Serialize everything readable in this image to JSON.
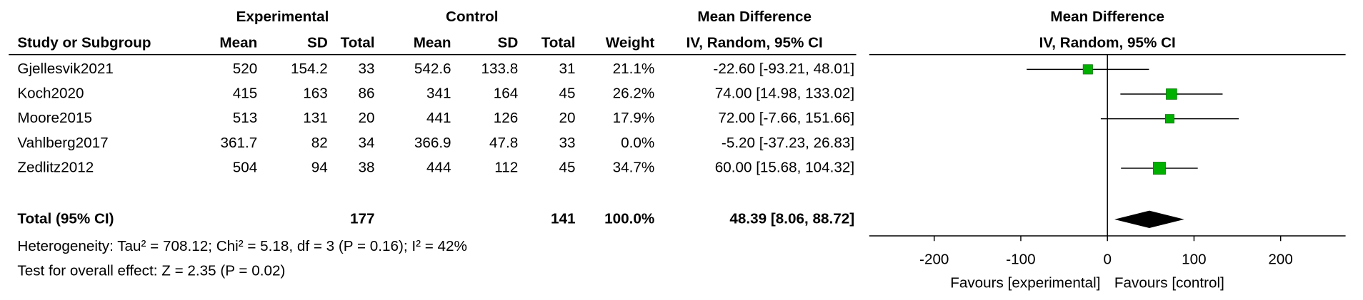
{
  "chart_data": {
    "type": "forest",
    "group_headers": [
      "Experimental",
      "Control",
      "Mean Difference"
    ],
    "column_headers": [
      "Study or Subgroup",
      "Mean",
      "SD",
      "Total",
      "Mean",
      "SD",
      "Total",
      "Weight",
      "IV, Random, 95% CI"
    ],
    "plot_headers": [
      "Mean Difference",
      "IV, Random, 95% CI"
    ],
    "studies": [
      {
        "name": "Gjellesvik2021",
        "exp_mean": 520,
        "exp_sd": 154.2,
        "exp_total": 33,
        "ctrl_mean": 542.6,
        "ctrl_sd": 133.8,
        "ctrl_total": 31,
        "weight": 21.1,
        "weight_label": "21.1%",
        "md": -22.6,
        "ci_low": -93.21,
        "ci_high": 48.01,
        "effect_label": "-22.60 [-93.21, 48.01]"
      },
      {
        "name": "Koch2020",
        "exp_mean": 415,
        "exp_sd": 163,
        "exp_total": 86,
        "ctrl_mean": 341,
        "ctrl_sd": 164,
        "ctrl_total": 45,
        "weight": 26.2,
        "weight_label": "26.2%",
        "md": 74,
        "ci_low": 14.98,
        "ci_high": 133.02,
        "effect_label": "74.00 [14.98, 133.02]"
      },
      {
        "name": "Moore2015",
        "exp_mean": 513,
        "exp_sd": 131,
        "exp_total": 20,
        "ctrl_mean": 441,
        "ctrl_sd": 126,
        "ctrl_total": 20,
        "weight": 17.9,
        "weight_label": "17.9%",
        "md": 72,
        "ci_low": -7.66,
        "ci_high": 151.66,
        "effect_label": "72.00 [-7.66, 151.66]"
      },
      {
        "name": "Vahlberg2017",
        "exp_mean": 361.7,
        "exp_sd": 82,
        "exp_total": 34,
        "ctrl_mean": 366.9,
        "ctrl_sd": 47.8,
        "ctrl_total": 33,
        "weight": 0,
        "weight_label": "0.0%",
        "md": -5.2,
        "ci_low": -37.23,
        "ci_high": 26.83,
        "effect_label": "-5.20 [-37.23, 26.83]"
      },
      {
        "name": "Zedlitz2012",
        "exp_mean": 504,
        "exp_sd": 94,
        "exp_total": 38,
        "ctrl_mean": 444,
        "ctrl_sd": 112,
        "ctrl_total": 45,
        "weight": 34.7,
        "weight_label": "34.7%",
        "md": 60,
        "ci_low": 15.68,
        "ci_high": 104.32,
        "effect_label": "60.00 [15.68, 104.32]"
      }
    ],
    "total": {
      "name": "Total (95% CI)",
      "exp_total": 177,
      "ctrl_total": 141,
      "weight": 100,
      "weight_label": "100.0%",
      "md": 48.39,
      "ci_low": 8.06,
      "ci_high": 88.72,
      "effect_label": "48.39 [8.06, 88.72]"
    },
    "heterogeneity": "Heterogeneity: Tau² = 708.12; Chi² = 5.18, df = 3 (P = 0.16); I² = 42%",
    "overall_effect": "Test for overall effect: Z = 2.35 (P = 0.02)",
    "xlim": [
      -275,
      275
    ],
    "xticks": [
      -200,
      -100,
      0,
      100,
      200
    ],
    "favours": [
      "Favours [experimental]",
      "Favours [control]"
    ],
    "marker_color": "#00b000",
    "diamond_color": "#000000"
  }
}
